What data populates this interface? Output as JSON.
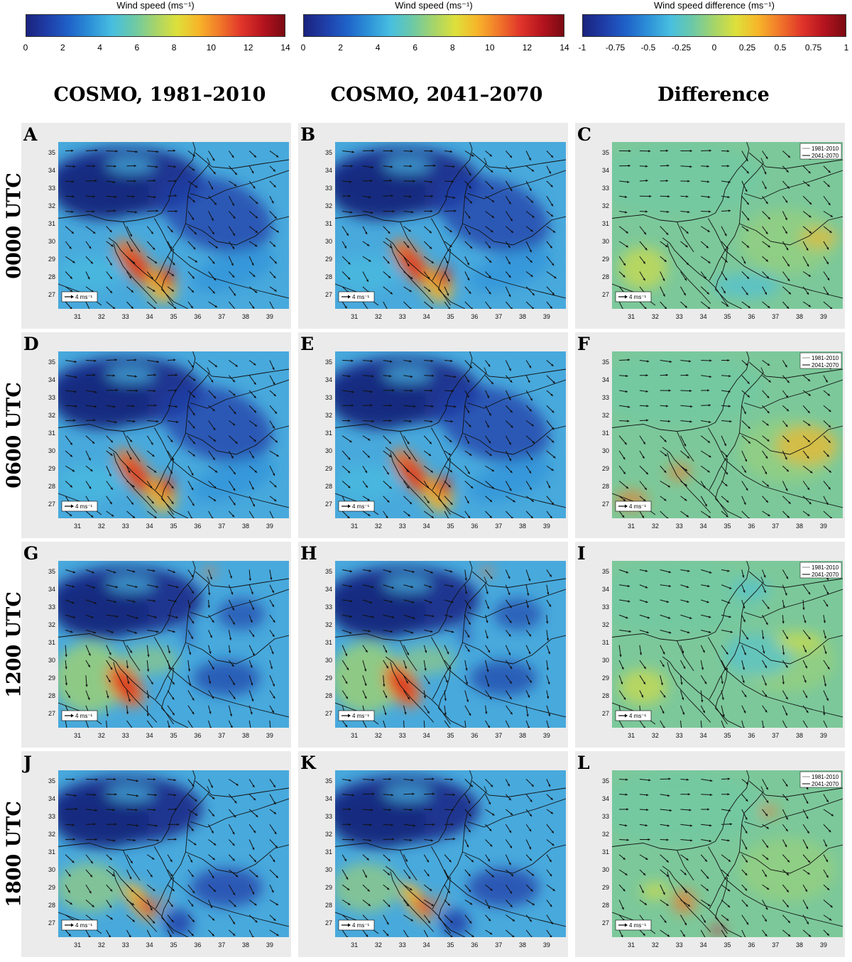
{
  "colorbars": [
    {
      "title": "Wind speed (ms⁻¹)",
      "ticks": [
        "0",
        "2",
        "4",
        "6",
        "8",
        "10",
        "12",
        "14"
      ],
      "cmap": "jet",
      "vmin": 0,
      "vmax": 14
    },
    {
      "title": "Wind speed (ms⁻¹)",
      "ticks": [
        "0",
        "2",
        "4",
        "6",
        "8",
        "10",
        "12",
        "14"
      ],
      "cmap": "jet",
      "vmin": 0,
      "vmax": 14
    },
    {
      "title": "Wind speed difference (ms⁻¹)",
      "ticks": [
        "-1",
        "-0.75",
        "-0.5",
        "-0.25",
        "0",
        "0.25",
        "0.5",
        "0.75",
        "1"
      ],
      "cmap": "jet",
      "vmin": -1,
      "vmax": 1
    }
  ],
  "column_titles": [
    "COSMO, 1981–2010",
    "COSMO, 2041–2070",
    "Difference"
  ],
  "row_titles": [
    "0000 UTC",
    "0600 UTC",
    "1200 UTC",
    "1800 UTC"
  ],
  "panel_labels": [
    "A",
    "B",
    "C",
    "D",
    "E",
    "F",
    "G",
    "H",
    "I",
    "J",
    "K",
    "L"
  ],
  "scale_label": "4 ms⁻¹",
  "legend_labels": [
    "1981-2010",
    "2041-2070"
  ],
  "colors": {
    "land_line": "#000000",
    "panel_bg": "#ebebeb",
    "dark_blue": "#1c2f8c",
    "red": "#d7191c"
  },
  "chart_data": {
    "type": "heatmap",
    "description_fields": "Wind speed maps over Eastern Mediterranean / Red Sea region",
    "x_axis": {
      "label": "",
      "ticks": [
        31,
        32,
        33,
        34,
        35,
        36,
        37,
        38,
        39
      ],
      "range": [
        30.2,
        39.8
      ]
    },
    "y_axis": {
      "label": "",
      "ticks": [
        27,
        28,
        29,
        30,
        31,
        32,
        33,
        34,
        35
      ],
      "range": [
        26.2,
        35.6
      ]
    },
    "wind_speed_range_ms": [
      0,
      14
    ],
    "difference_range_ms": [
      -1,
      1
    ],
    "vector_reference_ms": 4
  }
}
